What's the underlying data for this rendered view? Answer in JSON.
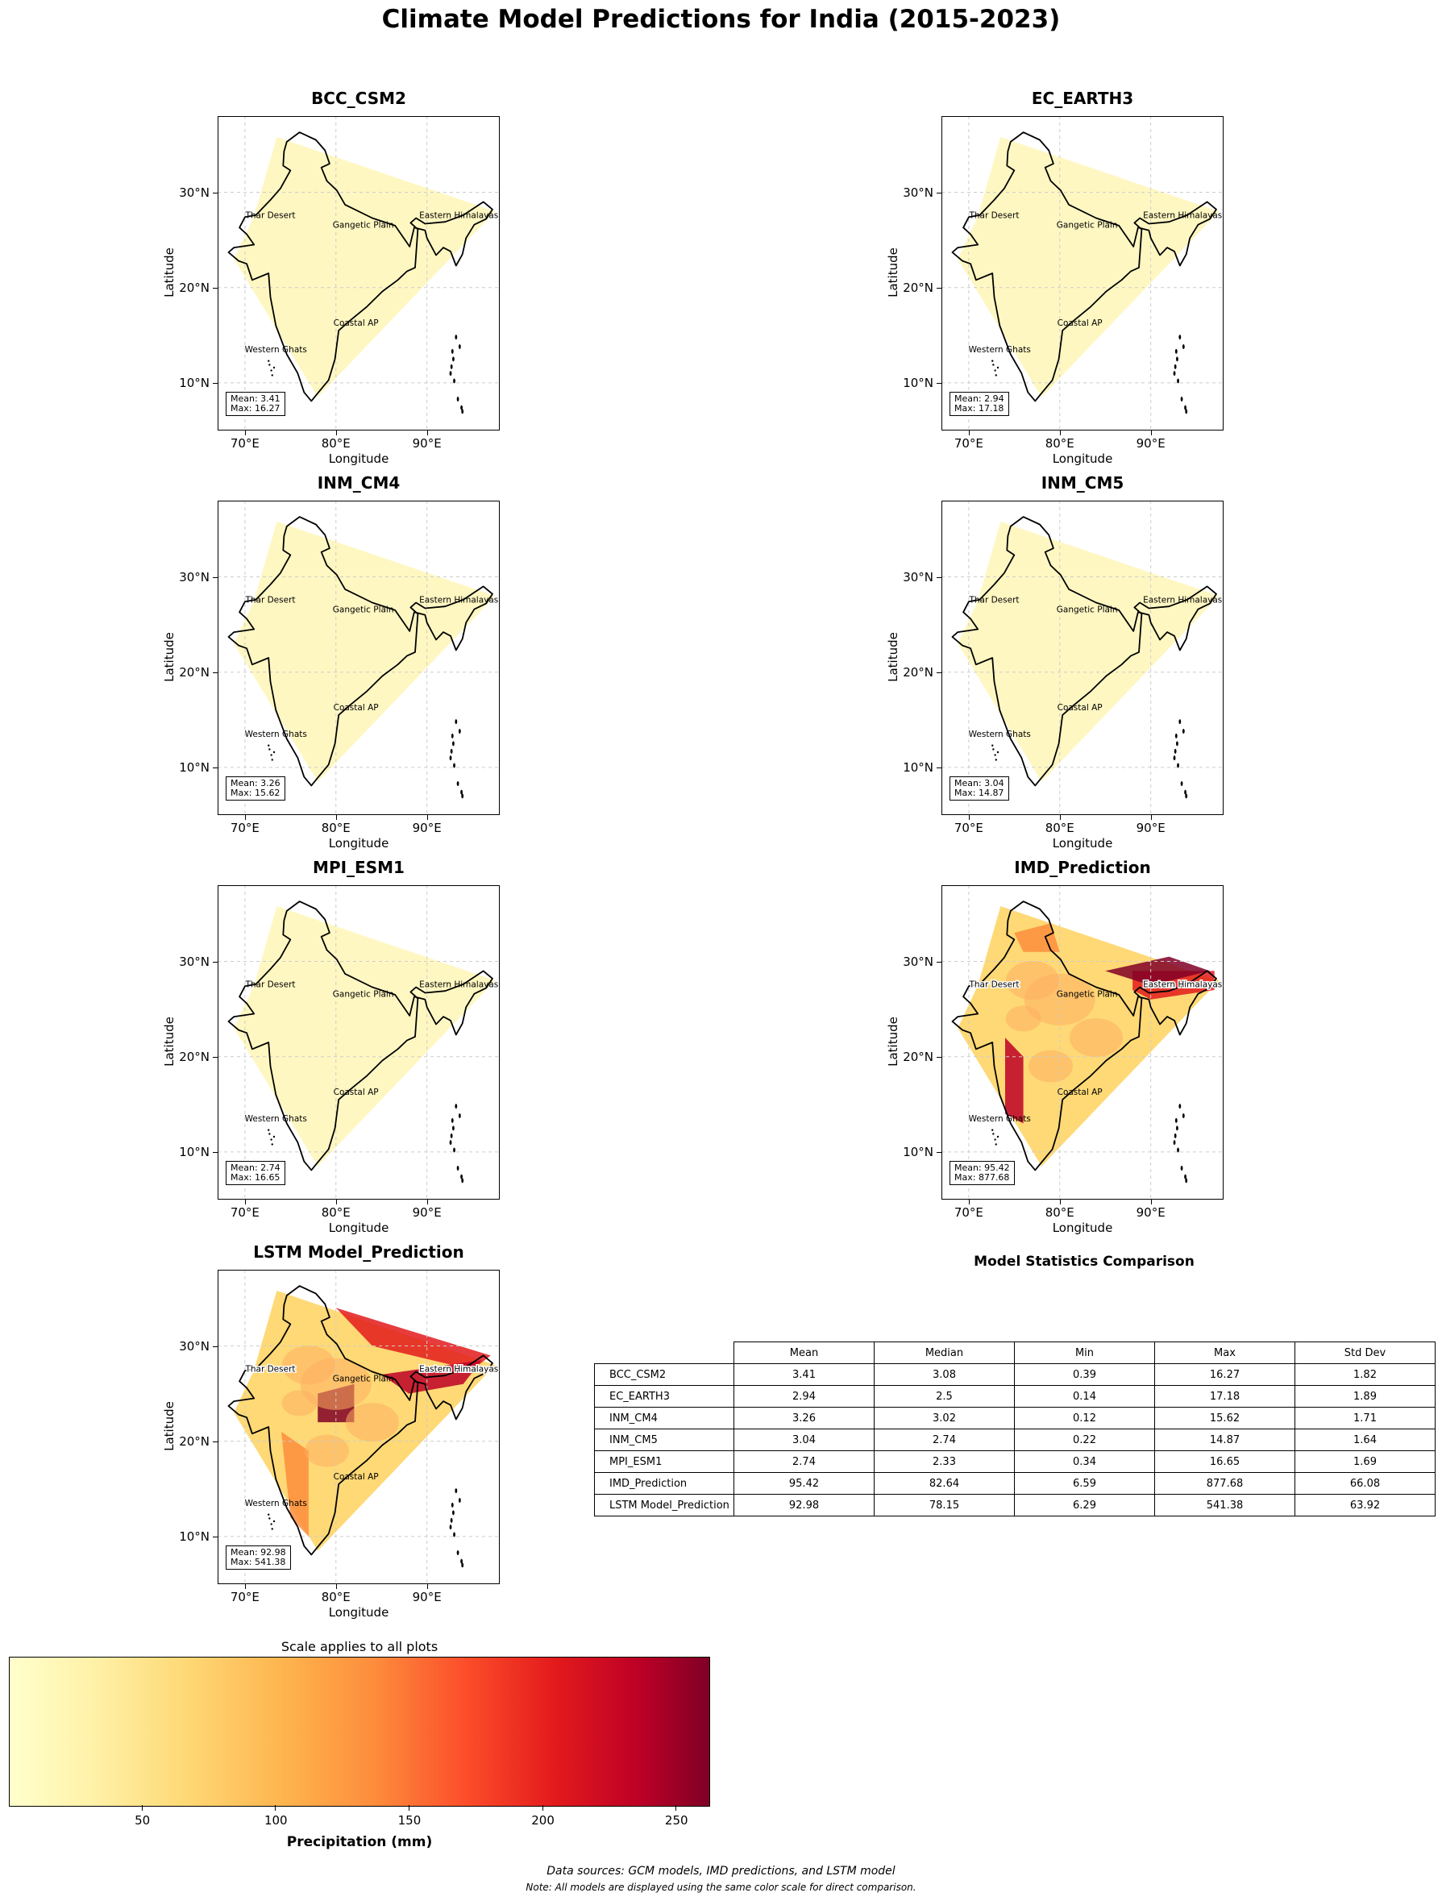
{
  "title": "Climate Model Predictions for India (2015-2023)",
  "axis": {
    "xlabel": "Longitude",
    "ylabel": "Latitude",
    "xticks": [
      "70°E",
      "80°E",
      "90°E"
    ],
    "yticks": [
      "30°N",
      "20°N",
      "10°N"
    ]
  },
  "regions": [
    "Thar Desert",
    "Gangetic Plain",
    "Eastern Himalayas",
    "Coastal AP",
    "Western Ghats"
  ],
  "panels": [
    {
      "name": "BCC_CSM2",
      "mean": "Mean: 3.41",
      "max": "Max: 16.27"
    },
    {
      "name": "EC_EARTH3",
      "mean": "Mean: 2.94",
      "max": "Max: 17.18"
    },
    {
      "name": "INM_CM4",
      "mean": "Mean: 3.26",
      "max": "Max: 15.62"
    },
    {
      "name": "INM_CM5",
      "mean": "Mean: 3.04",
      "max": "Max: 14.87"
    },
    {
      "name": "MPI_ESM1",
      "mean": "Mean: 2.74",
      "max": "Max: 16.65"
    },
    {
      "name": "IMD_Prediction",
      "mean": "Mean: 95.42",
      "max": "Max: 877.68"
    },
    {
      "name": "LSTM Model_Prediction",
      "mean": "Mean: 92.98",
      "max": "Max: 541.38"
    }
  ],
  "table": {
    "title": "Model Statistics Comparison",
    "columns": [
      "Mean",
      "Median",
      "Min",
      "Max",
      "Std Dev"
    ],
    "rows": [
      {
        "label": "BCC_CSM2",
        "values": [
          "3.41",
          "3.08",
          "0.39",
          "16.27",
          "1.82"
        ]
      },
      {
        "label": "EC_EARTH3",
        "values": [
          "2.94",
          "2.5",
          "0.14",
          "17.18",
          "1.89"
        ]
      },
      {
        "label": "INM_CM4",
        "values": [
          "3.26",
          "3.02",
          "0.12",
          "15.62",
          "1.71"
        ]
      },
      {
        "label": "INM_CM5",
        "values": [
          "3.04",
          "2.74",
          "0.22",
          "14.87",
          "1.64"
        ]
      },
      {
        "label": "MPI_ESM1",
        "values": [
          "2.74",
          "2.33",
          "0.34",
          "16.65",
          "1.69"
        ]
      },
      {
        "label": "IMD_Prediction",
        "values": [
          "95.42",
          "82.64",
          "6.59",
          "877.68",
          "66.08"
        ]
      },
      {
        "label": "LSTM Model_Prediction",
        "values": [
          "92.98",
          "78.15",
          "6.29",
          "541.38",
          "63.92"
        ]
      }
    ]
  },
  "colorbar": {
    "title": "Scale applies to all plots",
    "label": "Precipitation (mm)",
    "ticks": [
      "50",
      "100",
      "150",
      "200",
      "250"
    ],
    "tick_values": [
      50,
      100,
      150,
      200,
      250
    ],
    "range": [
      0,
      262
    ]
  },
  "footer": {
    "line1": "Data sources: GCM models, IMD predictions, and LSTM model",
    "line2": "Note: All models are displayed using the same color scale for direct comparison."
  },
  "chart_data": {
    "type": "heatmap",
    "colormap": "YlOrRd",
    "xlim": [
      67,
      98
    ],
    "ylim": [
      5,
      38
    ],
    "gridlines": true,
    "series": [
      {
        "name": "BCC_CSM2",
        "mean": 3.41,
        "max": 16.27
      },
      {
        "name": "EC_EARTH3",
        "mean": 2.94,
        "max": 17.18
      },
      {
        "name": "INM_CM4",
        "mean": 3.26,
        "max": 15.62
      },
      {
        "name": "INM_CM5",
        "mean": 3.04,
        "max": 14.87
      },
      {
        "name": "MPI_ESM1",
        "mean": 2.74,
        "max": 16.65
      },
      {
        "name": "IMD_Prediction",
        "mean": 95.42,
        "max": 877.68
      },
      {
        "name": "LSTM Model_Prediction",
        "mean": 92.98,
        "max": 541.38
      }
    ]
  }
}
